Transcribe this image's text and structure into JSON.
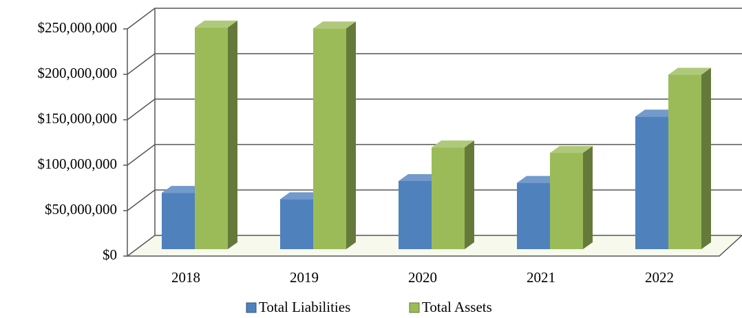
{
  "chart_data": {
    "type": "bar3d",
    "categories": [
      "2018",
      "2019",
      "2020",
      "2021",
      "2022"
    ],
    "series": [
      {
        "name": "Total Liabilities",
        "color": "#4f81bd",
        "values": [
          62000000,
          55000000,
          75000000,
          73000000,
          146000000
        ]
      },
      {
        "name": "Total Assets",
        "color": "#9bbb59",
        "values": [
          244000000,
          243000000,
          112000000,
          106000000,
          192000000
        ]
      }
    ],
    "ylim": [
      0,
      250000000
    ],
    "yticks": [
      {
        "value": 0,
        "label": "$0"
      },
      {
        "value": 50000000,
        "label": "$50,000,000"
      },
      {
        "value": 100000000,
        "label": "$100,000,000"
      },
      {
        "value": 150000000,
        "label": "$150,000,000"
      },
      {
        "value": 200000000,
        "label": "$200,000,000"
      },
      {
        "value": 250000000,
        "label": "$250,000,000"
      }
    ],
    "grid": true,
    "legend": "bottom"
  }
}
